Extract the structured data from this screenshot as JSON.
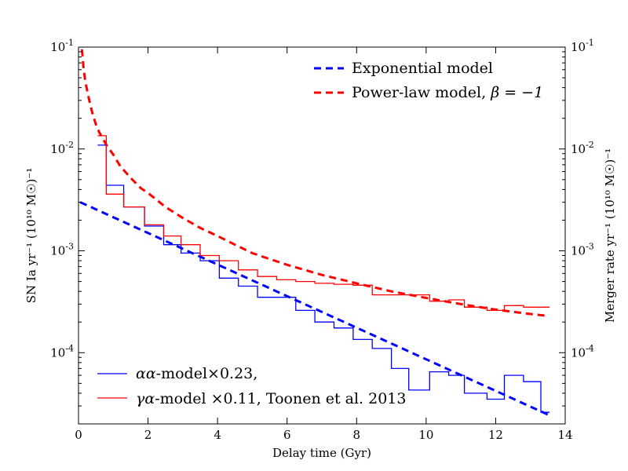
{
  "chart_data": {
    "type": "line",
    "title": "",
    "xlabel": "Delay time (Gyr)",
    "ylabel_left": "SN Ia yr⁻¹ (10¹⁰ M☉)⁻¹",
    "ylabel_right": "Merger rate  yr⁻¹ (10¹⁰ M☉)⁻¹",
    "xlim": [
      0,
      14
    ],
    "ylim": [
      2e-05,
      0.1
    ],
    "yscale": "log",
    "x_ticks": [
      {
        "value": 0,
        "label": "0"
      },
      {
        "value": 2,
        "label": "2"
      },
      {
        "value": 4,
        "label": "4"
      },
      {
        "value": 6,
        "label": "6"
      },
      {
        "value": 8,
        "label": "8"
      },
      {
        "value": 10,
        "label": "10"
      },
      {
        "value": 12,
        "label": "12"
      },
      {
        "value": 14,
        "label": "14"
      }
    ],
    "y_ticks": [
      {
        "value": 0.0001,
        "base": "10",
        "exp": "-4"
      },
      {
        "value": 0.001,
        "base": "10",
        "exp": "-3"
      },
      {
        "value": 0.01,
        "base": "10",
        "exp": "-2"
      },
      {
        "value": 0.1,
        "base": "10",
        "exp": "-1"
      }
    ],
    "grid": false,
    "legend_upper": {
      "placement": "top-right",
      "entries": [
        {
          "label": "Exponential model",
          "color": "#0000ff",
          "style": "dashed"
        },
        {
          "label": "Power-law model, ",
          "math": "β = −1",
          "color": "#ff0000",
          "style": "dashed"
        }
      ]
    },
    "legend_lower": {
      "placement": "bottom-left",
      "entries": [
        {
          "math": "αα",
          "label": "-model×0.23,",
          "color": "#0000ff",
          "style": "solid"
        },
        {
          "math": "γα",
          "label": "-model ×0.11, Toonen et al. 2013",
          "color": "#ff0000",
          "style": "solid"
        }
      ]
    },
    "series": [
      {
        "id": "exponential",
        "type": "line",
        "color": "#0000ff",
        "dashed": true,
        "points": [
          [
            0.05,
            0.003
          ],
          [
            13.5,
            2.47e-05
          ]
        ]
      },
      {
        "id": "powerlaw",
        "type": "line",
        "color": "#ff0000",
        "dashed": true,
        "points": [
          [
            0.1,
            0.095
          ],
          [
            0.15,
            0.06
          ],
          [
            0.2,
            0.045
          ],
          [
            0.3,
            0.031
          ],
          [
            0.4,
            0.0225
          ],
          [
            0.5,
            0.0175
          ],
          [
            0.6,
            0.0145
          ],
          [
            0.8,
            0.011
          ],
          [
            1.0,
            0.0088
          ],
          [
            1.2,
            0.0068
          ],
          [
            1.5,
            0.0052
          ],
          [
            1.8,
            0.0041
          ],
          [
            2.0,
            0.0037
          ],
          [
            2.5,
            0.0027
          ],
          [
            3.0,
            0.0021
          ],
          [
            3.5,
            0.00168
          ],
          [
            4.0,
            0.0014
          ],
          [
            4.5,
            0.00115
          ],
          [
            5.0,
            0.00095
          ],
          [
            5.5,
            0.00083
          ],
          [
            6.0,
            0.00073
          ],
          [
            7.0,
            0.00058
          ],
          [
            8.0,
            0.00048
          ],
          [
            9.0,
            0.0004
          ],
          [
            10.0,
            0.000345
          ],
          [
            11.0,
            0.0003
          ],
          [
            12.0,
            0.000265
          ],
          [
            13.0,
            0.00024
          ],
          [
            13.5,
            0.00023
          ]
        ]
      },
      {
        "id": "alpha_alpha",
        "type": "step",
        "color": "#0000ff",
        "edges": [
          0.55,
          0.8,
          1.3,
          1.9,
          2.45,
          2.95,
          3.5,
          4.05,
          4.6,
          5.15,
          6.25,
          6.8,
          7.35,
          7.9,
          8.45,
          9.0,
          9.5,
          10.1,
          10.65,
          11.1,
          11.75,
          12.25,
          12.8,
          13.3,
          13.55
        ],
        "values": [
          0.0109,
          0.0044,
          0.0027,
          0.00175,
          0.00115,
          0.00095,
          0.0008,
          0.00054,
          0.00045,
          0.00035,
          0.00026,
          0.0002,
          0.000175,
          0.000135,
          0.00011,
          7e-05,
          4.3e-05,
          6.5e-05,
          6e-05,
          4e-05,
          3.5e-05,
          6e-05,
          5.2e-05,
          2.6e-05
        ]
      },
      {
        "id": "gamma_alpha",
        "type": "step",
        "color": "#ff0000",
        "edges": [
          0.55,
          0.8,
          1.3,
          1.9,
          2.45,
          2.95,
          3.5,
          4.05,
          4.6,
          5.15,
          5.7,
          6.25,
          6.8,
          7.35,
          7.9,
          8.45,
          9.5,
          10.1,
          10.65,
          11.1,
          11.75,
          12.25,
          12.8,
          13.3,
          13.55
        ],
        "values": [
          0.0135,
          0.0036,
          0.0027,
          0.0018,
          0.0014,
          0.00115,
          0.0009,
          0.0008,
          0.00065,
          0.00056,
          0.00052,
          0.0005,
          0.00048,
          0.00047,
          0.00046,
          0.00037,
          0.00037,
          0.00032,
          0.00033,
          0.00028,
          0.00026,
          0.00029,
          0.00028,
          0.00028
        ]
      }
    ]
  }
}
